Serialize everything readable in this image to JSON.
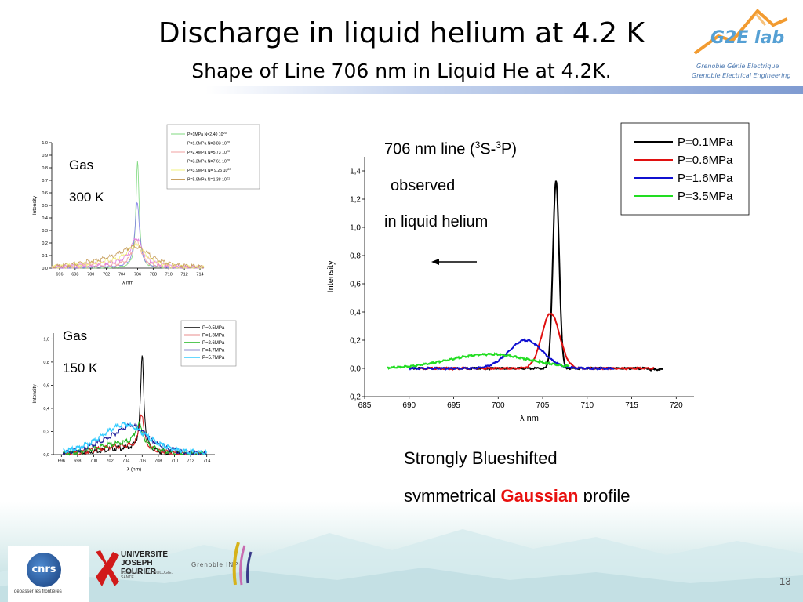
{
  "slide": {
    "title": "Discharge in liquid helium  at 4.2 K",
    "subtitle": "Shape of Line 706 nm in Liquid He at 4.2K.",
    "page_number": "13"
  },
  "logos": {
    "g2e_name": "G2E lab",
    "g2e_line1": "Grenoble  Génie  Electrique",
    "g2e_line2": "Grenoble Electrical Engineering",
    "cnrs_name": "cnrs",
    "cnrs_tagline": "dépasser les frontières",
    "ujf_name": "UNIVERSITE JOSEPH FOURIER",
    "ujf_tagline": "SCIENCES. TECHNOLOGIE. SANTÉ",
    "inp_name": "Grenoble INP"
  },
  "annotations": {
    "gas300_label": "Gas",
    "gas300_temp": "300 K",
    "gas150_label": "Gas",
    "gas150_temp": "150 K",
    "line_title_prefix": "706 nm line (",
    "line_title_sup1": "3",
    "line_title_mid": "S-",
    "line_title_sup2": "3",
    "line_title_suffix": "P)",
    "observed": "observed",
    "in_liquid": "in liquid helium",
    "conclusion_1": "Strongly Blueshifted",
    "conclusion_2_pre": "symmetrical ",
    "conclusion_2_highlight": "Gaussian",
    "conclusion_2_post": " profile",
    "highlight_color": "#e8110f"
  },
  "chart_data": [
    {
      "id": "gas300",
      "type": "line",
      "xlabel": "λ nm",
      "ylabel": "Intensity",
      "xlim": [
        695,
        714.5
      ],
      "ylim": [
        0,
        1.0
      ],
      "xticks": [
        696,
        698,
        700,
        702,
        704,
        706,
        708,
        710,
        712,
        714
      ],
      "yticks": [
        0.0,
        0.1,
        0.2,
        0.3,
        0.4,
        0.5,
        0.6,
        0.7,
        0.8,
        0.9,
        1.0
      ],
      "ytick_labels": [
        "0.0",
        "0.1",
        "0.2",
        "0.3",
        "0.4",
        "0.5",
        "0.6",
        "0.7",
        "0.8",
        "0.9",
        "1.0"
      ],
      "xtick_labels": [
        "696",
        "698",
        "700",
        "702",
        "704",
        "706",
        "708",
        "710",
        "712",
        "714"
      ],
      "legend_position": "top-right",
      "series": [
        {
          "name": "P=1MPa  N=2.40 10",
          "exp": "20",
          "color": "#7fd97f",
          "peak": 0.85,
          "width": 0.25,
          "base": 0.0
        },
        {
          "name": "P=1.6MPa N=3.83 10",
          "exp": "20",
          "color": "#7f7fe6",
          "peak": 0.52,
          "width": 0.35,
          "base": 0.0
        },
        {
          "name": "P=2.4MPa N=5.73 10",
          "exp": "20",
          "color": "#f2a0a0",
          "peak": 0.2,
          "width": 0.7,
          "base": 0.0
        },
        {
          "name": "P=3.2MPa N=7.61 10",
          "exp": "20",
          "color": "#e07fe0",
          "peak": 0.22,
          "width": 0.9,
          "base": 0.0
        },
        {
          "name": "P=3.9MPa N= 9.25 10",
          "exp": "20",
          "color": "#f2f27f",
          "peak": 0.15,
          "width": 1.4,
          "base": 0.0
        },
        {
          "name": "P=5.9MPa N=1.38 10",
          "exp": "21",
          "color": "#c8a060",
          "peak": 0.13,
          "width": 2.2,
          "base": 0.0
        }
      ]
    },
    {
      "id": "gas150",
      "type": "line",
      "xlabel": "λ (nm)",
      "ylabel": "Intensity",
      "xlim": [
        695,
        715
      ],
      "ylim": [
        0,
        1.05
      ],
      "xticks": [
        696,
        698,
        700,
        702,
        704,
        706,
        708,
        710,
        712,
        714
      ],
      "yticks": [
        0.0,
        0.2,
        0.4,
        0.6,
        0.8,
        1.0
      ],
      "ytick_labels": [
        "0,0",
        "0,2",
        "0,4",
        "0,6",
        "0,8",
        "1,0"
      ],
      "xtick_labels": [
        "696",
        "698",
        "700",
        "702",
        "704",
        "706",
        "708",
        "710",
        "712",
        "714"
      ],
      "legend_position": "top-right",
      "series": [
        {
          "name": "P=0.5MPa",
          "color": "#000000",
          "peak": 0.86,
          "center": 706.0
        },
        {
          "name": "P=1.3MPa",
          "color": "#d11a1a",
          "peak": 0.37,
          "center": 705.9
        },
        {
          "name": "P=2.6MPa",
          "color": "#1fb51f",
          "peak": 0.19,
          "center": 705.6
        },
        {
          "name": "P=4.7MPa",
          "color": "#1a1a99",
          "peak": 0.15,
          "center": 704.8
        },
        {
          "name": "P=5.7MPa",
          "color": "#33ccff",
          "peak": 0.14,
          "center": 704.0
        }
      ]
    },
    {
      "id": "liquid",
      "type": "line",
      "xlabel": "λ nm",
      "ylabel": "Intensity",
      "xlim": [
        685,
        722
      ],
      "ylim": [
        -0.2,
        1.5
      ],
      "xticks": [
        685,
        690,
        695,
        700,
        705,
        710,
        715,
        720
      ],
      "yticks": [
        -0.2,
        0.0,
        0.2,
        0.4,
        0.6,
        0.8,
        1.0,
        1.2,
        1.4
      ],
      "ytick_labels": [
        "-0,2",
        "0,0",
        "0,2",
        "0,4",
        "0,6",
        "0,8",
        "1,0",
        "1,2",
        "1,4"
      ],
      "xtick_labels": [
        "685",
        "690",
        "695",
        "700",
        "705",
        "710",
        "715",
        "720"
      ],
      "legend_position": "top-right",
      "series": [
        {
          "name": "P=0.1MPa",
          "color": "#000000",
          "center": 706.5,
          "sigma": 0.35,
          "peak": 1.33,
          "x_start": 690,
          "x_end": 718.5
        },
        {
          "name": "P=0.6MPa",
          "color": "#e01010",
          "center": 705.9,
          "sigma": 1.0,
          "peak": 0.39,
          "x_start": 691,
          "x_end": 717.5
        },
        {
          "name": "P=1.6MPa",
          "color": "#1010d0",
          "center": 703.1,
          "sigma": 1.9,
          "peak": 0.2,
          "x_start": 690,
          "x_end": 713
        },
        {
          "name": "P=3.5MPa",
          "color": "#22dd22",
          "center": 699.0,
          "sigma": 4.6,
          "peak": 0.1,
          "x_start": 687.5,
          "x_end": 708
        }
      ]
    }
  ]
}
